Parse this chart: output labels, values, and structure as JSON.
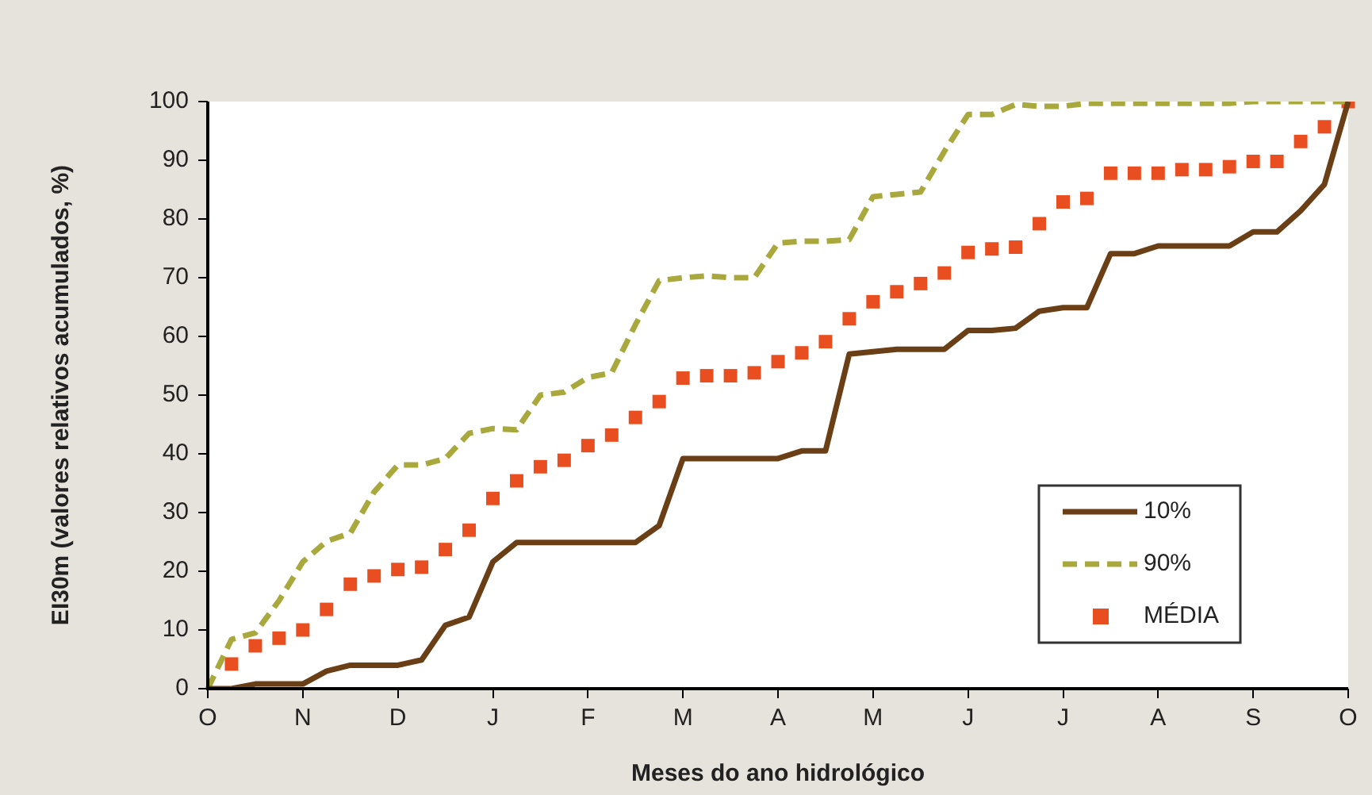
{
  "chart_data": {
    "type": "line",
    "xlabel": "Meses do ano hidrológico",
    "ylabel": "EI30m (valores relativos acumulados, %)",
    "categories": [
      "O",
      null,
      null,
      null,
      "N",
      null,
      null,
      null,
      "D",
      null,
      null,
      null,
      "J",
      null,
      null,
      null,
      "F",
      null,
      null,
      null,
      "M",
      null,
      null,
      null,
      "A",
      null,
      null,
      null,
      "M",
      null,
      null,
      null,
      "J",
      null,
      null,
      null,
      "J",
      null,
      null,
      null,
      "A",
      null,
      null,
      null,
      "S",
      null,
      null,
      null,
      "O"
    ],
    "series": [
      {
        "name": "10%",
        "color": "#6b3f16",
        "line_style": "solid",
        "marker": "none",
        "values": [
          0,
          0,
          0.8,
          0.8,
          0.8,
          3.0,
          4.0,
          4.0,
          4.0,
          4.9,
          10.8,
          12.2,
          21.6,
          24.9,
          24.9,
          24.9,
          24.9,
          24.9,
          24.9,
          27.8,
          39.2,
          39.2,
          39.2,
          39.2,
          39.2,
          40.5,
          40.5,
          57.0,
          57.4,
          57.8,
          57.8,
          57.8,
          61.0,
          61.0,
          61.4,
          64.3,
          64.9,
          64.9,
          74.1,
          74.1,
          75.4,
          75.4,
          75.4,
          75.4,
          77.8,
          77.8,
          81.4,
          85.9,
          100
        ]
      },
      {
        "name": "90%",
        "color": "#a9a83c",
        "line_style": "dashed",
        "marker": "none",
        "values": [
          0,
          8.4,
          9.5,
          15.0,
          21.6,
          25.1,
          26.5,
          33.5,
          38.1,
          38.1,
          39.2,
          43.5,
          44.3,
          44.1,
          50.0,
          50.5,
          53.0,
          53.8,
          62.0,
          69.5,
          70.0,
          70.3,
          70.0,
          70.0,
          75.9,
          76.2,
          76.2,
          76.5,
          83.8,
          84.2,
          84.6,
          91.5,
          97.8,
          97.8,
          99.5,
          99.2,
          99.2,
          99.7,
          99.7,
          99.7,
          99.7,
          99.7,
          99.7,
          99.7,
          100,
          100,
          100,
          100,
          100
        ]
      },
      {
        "name": "MÉDIA",
        "color": "#e84e1f",
        "type": "scatter",
        "marker": "square",
        "values": [
          null,
          4.2,
          7.3,
          8.6,
          10.0,
          13.5,
          17.8,
          19.2,
          20.3,
          20.7,
          23.7,
          27.0,
          32.4,
          35.4,
          37.8,
          38.9,
          41.4,
          43.2,
          46.2,
          48.9,
          52.9,
          53.3,
          53.3,
          53.8,
          55.7,
          57.2,
          59.1,
          63.0,
          65.9,
          67.6,
          69.0,
          70.8,
          74.3,
          74.9,
          75.2,
          79.2,
          82.9,
          83.5,
          87.8,
          87.8,
          87.8,
          88.4,
          88.4,
          88.9,
          89.8,
          89.8,
          93.2,
          95.7,
          100
        ]
      }
    ],
    "ylim": [
      0,
      100
    ],
    "yticks": [
      0,
      10,
      20,
      30,
      40,
      50,
      60,
      70,
      80,
      90,
      100
    ],
    "grid": false,
    "legend": "bottom right"
  }
}
